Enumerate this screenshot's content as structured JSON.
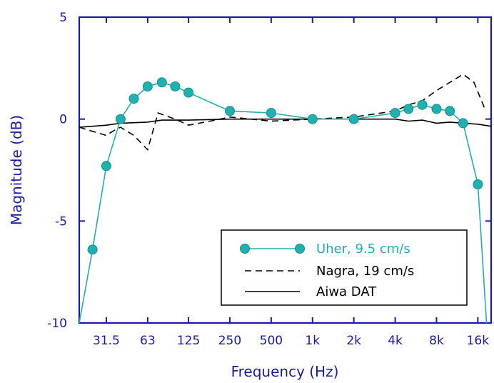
{
  "chart_data": {
    "type": "line",
    "xlabel": "Frequency (Hz)",
    "ylabel": "Magnitude (dB)",
    "x_scale": "log",
    "xlim": [
      20,
      20000
    ],
    "ylim": [
      -10,
      5
    ],
    "x_ticks": [
      {
        "value": 31.5,
        "label": "31.5"
      },
      {
        "value": 63,
        "label": "63"
      },
      {
        "value": 125,
        "label": "125"
      },
      {
        "value": 250,
        "label": "250"
      },
      {
        "value": 500,
        "label": "500"
      },
      {
        "value": 1000,
        "label": "1k"
      },
      {
        "value": 2000,
        "label": "2k"
      },
      {
        "value": 4000,
        "label": "4k"
      },
      {
        "value": 8000,
        "label": "8k"
      },
      {
        "value": 16000,
        "label": "16k"
      }
    ],
    "y_ticks": [
      {
        "value": 5,
        "label": "5"
      },
      {
        "value": 0,
        "label": "0"
      },
      {
        "value": -5,
        "label": "-5"
      },
      {
        "value": -10,
        "label": "-10"
      }
    ],
    "grid": false,
    "legend_position": "bottom-right",
    "series": [
      {
        "name": "Uher, 9.5 cm/s",
        "style": "solid-markers",
        "color": "#20b0b0",
        "points": [
          [
            20,
            -10.0
          ],
          [
            25,
            -6.4
          ],
          [
            31.5,
            -2.3
          ],
          [
            40,
            0.0
          ],
          [
            50,
            1.0
          ],
          [
            63,
            1.6
          ],
          [
            80,
            1.8
          ],
          [
            100,
            1.6
          ],
          [
            125,
            1.3
          ],
          [
            250,
            0.4
          ],
          [
            500,
            0.3
          ],
          [
            1000,
            0.0
          ],
          [
            2000,
            0.0
          ],
          [
            4000,
            0.3
          ],
          [
            5000,
            0.5
          ],
          [
            6300,
            0.7
          ],
          [
            8000,
            0.5
          ],
          [
            10000,
            0.4
          ],
          [
            12500,
            -0.2
          ],
          [
            16000,
            -3.2
          ],
          [
            18500,
            -10.0
          ]
        ]
      },
      {
        "name": "Nagra, 19 cm/s",
        "style": "dashed",
        "color": "#000000",
        "points": [
          [
            20,
            -0.4
          ],
          [
            25,
            -0.6
          ],
          [
            31.5,
            -0.8
          ],
          [
            37,
            -0.5
          ],
          [
            40,
            -0.4
          ],
          [
            50,
            -0.8
          ],
          [
            63,
            -1.5
          ],
          [
            75,
            0.3
          ],
          [
            100,
            0.0
          ],
          [
            125,
            -0.3
          ],
          [
            180,
            -0.1
          ],
          [
            250,
            0.1
          ],
          [
            500,
            -0.1
          ],
          [
            1000,
            0.0
          ],
          [
            2000,
            0.1
          ],
          [
            4000,
            0.4
          ],
          [
            5000,
            0.7
          ],
          [
            6300,
            0.9
          ],
          [
            8000,
            1.4
          ],
          [
            10000,
            1.8
          ],
          [
            12500,
            2.2
          ],
          [
            15000,
            1.8
          ],
          [
            18000,
            0.5
          ]
        ]
      },
      {
        "name": "Aiwa DAT",
        "style": "solid",
        "color": "#000000",
        "points": [
          [
            20,
            -0.4
          ],
          [
            25,
            -0.35
          ],
          [
            31.5,
            -0.3
          ],
          [
            40,
            -0.2
          ],
          [
            63,
            -0.15
          ],
          [
            80,
            -0.05
          ],
          [
            125,
            -0.05
          ],
          [
            250,
            0.0
          ],
          [
            500,
            0.0
          ],
          [
            1000,
            0.0
          ],
          [
            2000,
            0.0
          ],
          [
            4000,
            0.0
          ],
          [
            5000,
            -0.1
          ],
          [
            6300,
            -0.05
          ],
          [
            8000,
            -0.2
          ],
          [
            10000,
            -0.15
          ],
          [
            12500,
            -0.2
          ],
          [
            16000,
            -0.25
          ],
          [
            20000,
            -0.35
          ]
        ]
      }
    ]
  }
}
